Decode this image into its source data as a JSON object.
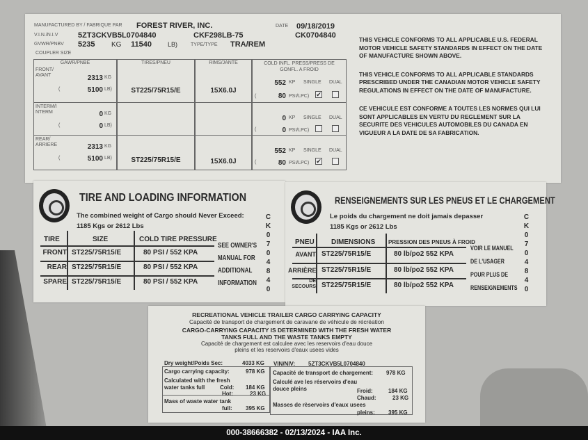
{
  "cert_label": {
    "manufactured_by_label": "MANUFACTURED BY / FABRIQUE PAR",
    "manufacturer": "FOREST RIVER, INC.",
    "date_label": "DATE",
    "date": "09/18/2019",
    "vin_label": "V.I.N./N.I.V",
    "vin": "5ZT3CKVB5L0704840",
    "model": "CKF298LB-75",
    "serial": "CK0704840",
    "gvwr_label": "GVWR/PNBV",
    "gvwr_kg": "5235",
    "kg_unit": "KG",
    "gvwr_lb": "11540",
    "lb_unit": "LB)",
    "type_label": "TYPE/TYPE",
    "type": "TRA/REM",
    "coupler_label": "COUPLER SIZE",
    "headers": [
      "GAWR/PNBE",
      "TIRES/PNEU",
      "RIMS/JANTE",
      "COLD INFL. PRESS/PRESS DE GONFL. A FROID"
    ],
    "rows": [
      {
        "axle": "FRONT/ AVANT",
        "kg": "2313",
        "lb": "5100",
        "tire": "ST225/75R15/E",
        "rim": "15X6.0J",
        "kpa": "552",
        "psi": "80",
        "single": true,
        "dual": false
      },
      {
        "axle": "INTERM/I NTERM",
        "kg": "0",
        "lb": "0",
        "tire": "",
        "rim": "",
        "kpa": "0",
        "psi": "0",
        "single": false,
        "dual": false
      },
      {
        "axle": "REAR/ ARRIERE",
        "kg": "2313",
        "lb": "5100",
        "tire": "ST225/75R15/E",
        "rim": "15X6.0J",
        "kpa": "552",
        "psi": "80",
        "single": true,
        "dual": false
      }
    ],
    "kg_suffix": "KG",
    "lb_suffix": "LB)",
    "kp_label": "KP",
    "psi_label": "PSI/LPC)",
    "single_label": "SINGLE",
    "dual_label": "DUAL",
    "paren": "(",
    "compliance": [
      "THIS VEHICLE CONFORMS TO ALL APPLICABLE U.S. FEDERAL MOTOR VEHICLE SAFETY STANDARDS IN EFFECT ON THE DATE OF MANUFACTURE SHOWN ABOVE.",
      "THIS VEHICLE CONFORMS TO ALL APPLICABLE STANDARDS PRESCRIBED UNDER THE CANADIAN MOTOR VEHICLE SAFETY REGULATIONS IN EFFECT ON THE DATE OF MANUFACTURE.",
      "CE VEHICULE EST CONFORME A TOUTES LES NORMES QUI LUI SONT APPLICABLES EN VERTU DU REGLEMENT SUR LA SECURITE DES VEHICULES AUTOMOBILES DU CANADA EN VIGUEUR A LA DATE DE SA FABRICATION."
    ]
  },
  "tire_en": {
    "title": "TIRE AND LOADING INFORMATION",
    "line1": "The combined weight of Cargo should Never Exceed:",
    "line2": "1185  Kgs or 2612  Lbs",
    "headers": [
      "TIRE",
      "SIZE",
      "COLD TIRE PRESSURE"
    ],
    "rows": [
      {
        "pos": "FRONT",
        "size": "ST225/75R15/E",
        "pressure": "80 PSI / 552 KPA"
      },
      {
        "pos": "REAR",
        "size": "ST225/75R15/E",
        "pressure": "80 PSI / 552 KPA"
      },
      {
        "pos": "SPARE",
        "size": "ST225/75R15/E",
        "pressure": "80 PSI / 552 KPA"
      }
    ],
    "note": [
      "SEE OWNER'S",
      "MANUAL FOR",
      "ADDITIONAL",
      "INFORMATION"
    ],
    "code": "CK0704840"
  },
  "tire_fr": {
    "title": "RENSEIGNEMENTS SUR LES PNEUS ET LE CHARGEMENT",
    "line1": "Le poids du chargement ne doit jamais depasser",
    "line2": "1185  Kgs or 2612  Lbs",
    "headers": [
      "PNEU",
      "DIMENSIONS",
      "PRESSION DES PNEUS À FROID"
    ],
    "rows": [
      {
        "pos": "AVANT",
        "size": "ST225/75R15/E",
        "pressure": "80  lb/po2  552 KPA"
      },
      {
        "pos": "ARRIÈRE",
        "size": "ST225/75R15/E",
        "pressure": "80  lb/po2  552 KPA"
      },
      {
        "pos": "DE SECOURS",
        "size": "ST225/75R15/E",
        "pressure": "80 lb/po2  552 KPA"
      }
    ],
    "note": [
      "VOIR LE MANUEL",
      "DE L'USAGER",
      "POUR PLUS DE",
      "RENSEIGNEMENTS"
    ],
    "code": "CK0704840"
  },
  "cargo": {
    "title": "RECREATIONAL VEHICLE TRAILER CARGO CARRYING CAPACITY",
    "title_fr": "Capacité de transport de chargement de caravane de véhicule de récréation",
    "det1": "CARGO-CARRYING CAPACITY IS DETERMINED WITH THE FRESH WATER",
    "det2": "TANKS FULL AND THE WASTE TANKS EMPTY",
    "det_fr1": "Capacité de chargement est calculee avec les reservoirs d'eau douce",
    "det_fr2": "pleins et les reservoirs d'eaux usees vides",
    "dry_label": "Dry weight/Poids Sec:",
    "dry": "4033 KG",
    "vin_label": "VIN/NIV:",
    "vin": "5ZT3CKVB5L0704840",
    "cap_label": "Cargo carrying capacity:",
    "cap": "978 KG",
    "calc1": "Calculated with the fresh",
    "calc2": "water tanks full",
    "cold_label": "Cold:",
    "cold": "184 KG",
    "hot_label": "Hot:",
    "hot": "23 KG",
    "waste_label": "Mass of waste water tank",
    "waste_label2": "full:",
    "waste": "395 KG",
    "cap_fr_label": "Capacité de transport de chargement:",
    "cap_fr": "978 KG",
    "calc_fr1": "Calculé ave les réservoirs d'eau",
    "calc_fr2": "douce pleins",
    "froid_label": "Froid:",
    "froid": "184 KG",
    "chaud_label": "Chaud:",
    "chaud": "23 KG",
    "waste_fr_label": "Masses de rèservoirs d'eaux usees",
    "waste_fr_label2": "pleins:",
    "waste_fr": "395 KG"
  },
  "caption": "000-38666382 - 02/13/2024 - IAA Inc."
}
